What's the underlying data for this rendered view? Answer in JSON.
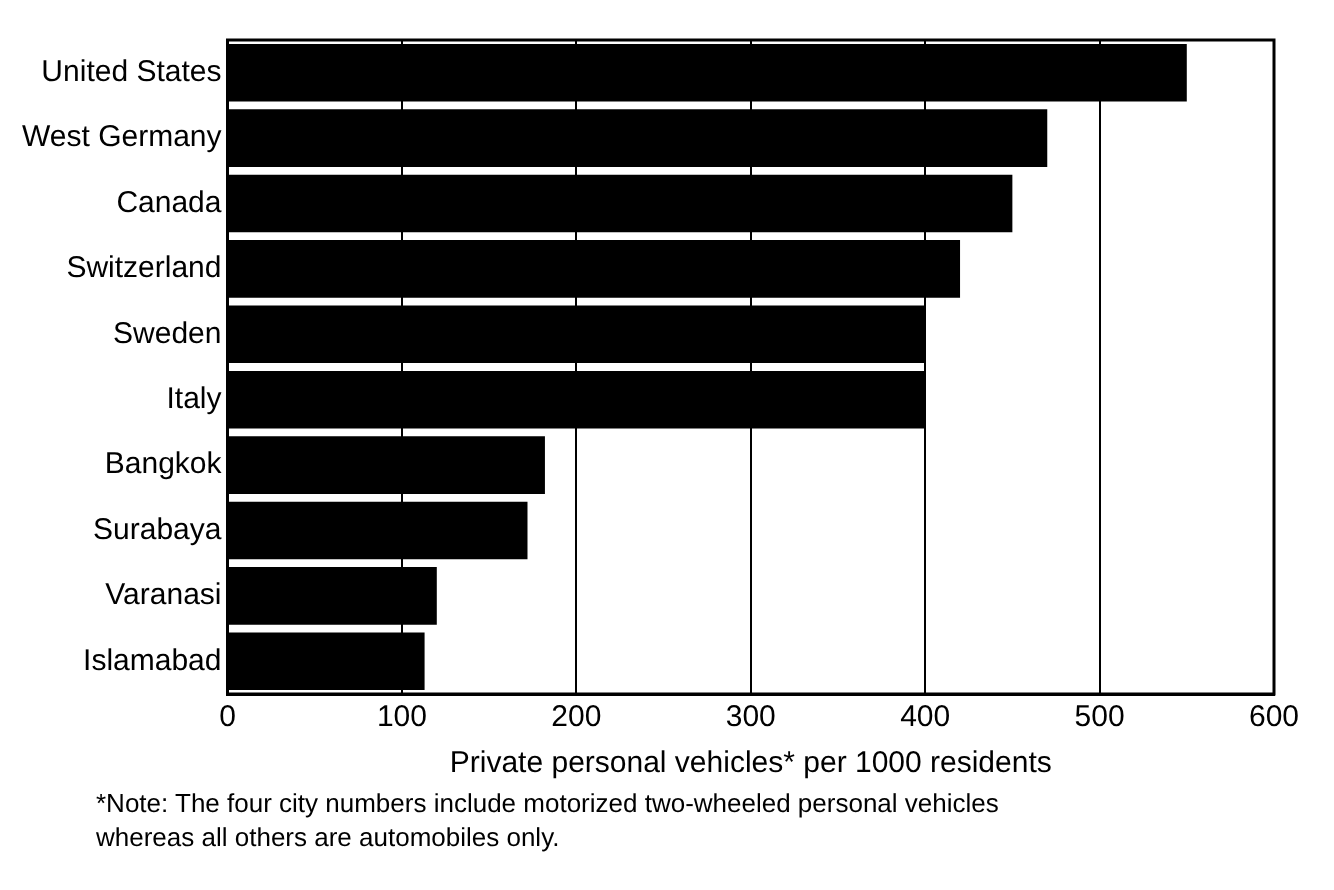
{
  "chart_data": {
    "type": "bar",
    "orientation": "horizontal",
    "xlabel": "Private personal vehicles* per 1000 residents",
    "categories": [
      "United States",
      "West Germany",
      "Canada",
      "Switzerland",
      "Sweden",
      "Italy",
      "Bangkok",
      "Surabaya",
      "Varanasi",
      "Islamabad"
    ],
    "values": [
      550,
      470,
      450,
      420,
      400,
      400,
      182,
      172,
      120,
      113
    ],
    "color": "#000000",
    "xlim": [
      0,
      600
    ],
    "xticks": [
      0,
      100,
      200,
      300,
      400,
      500,
      600
    ],
    "grid": "x",
    "legend": false,
    "annotations": [
      "*Note: The four city numbers include motorized two-wheeled personal vehicles whereas all others are automobiles only."
    ]
  }
}
